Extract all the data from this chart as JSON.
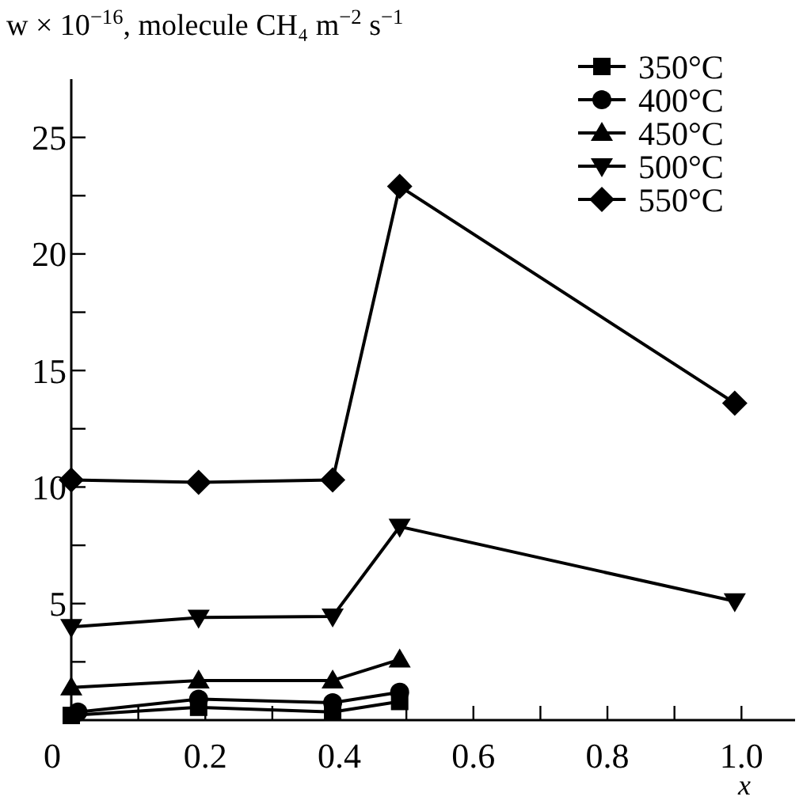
{
  "chart_data": {
    "type": "line",
    "ylabel": "w × 10$^{−16}$, molecule CH₄ m$^{−2}$ s$^{−1}$",
    "xlabel": "x",
    "xlim": [
      0,
      1.08
    ],
    "ylim": [
      0,
      27.5
    ],
    "xticks": [
      0,
      {
        "value": 0.1,
        "label": null
      },
      0.2,
      {
        "value": 0.3,
        "label": null
      },
      0.4,
      {
        "value": 0.5,
        "label": null
      },
      0.6,
      {
        "value": 0.7,
        "label": null
      },
      0.8,
      {
        "value": 0.9,
        "label": null
      },
      {
        "value": 1.0,
        "label": "1.0"
      }
    ],
    "yticks": [
      {
        "value": 2.5,
        "label": null
      },
      5,
      {
        "value": 7.5,
        "label": null
      },
      10,
      {
        "value": 12.5,
        "label": null
      },
      15,
      {
        "value": 17.5,
        "label": null
      },
      20,
      {
        "value": 22.5,
        "label": null
      },
      25
    ],
    "legend": "top right",
    "grid": false,
    "line_style": "solid",
    "series": [
      {
        "name": "350°C",
        "color": "#000000",
        "marker": "square",
        "x": [
          0,
          0.19,
          0.39,
          0.49
        ],
        "values": [
          0.2,
          0.55,
          0.35,
          0.8
        ]
      },
      {
        "name": "400°C",
        "color": "#000000",
        "marker": "circle",
        "x": [
          0.01,
          0.19,
          0.39,
          0.49
        ],
        "values": [
          0.35,
          0.9,
          0.75,
          1.2
        ]
      },
      {
        "name": "450°C",
        "color": "#000000",
        "marker": "triangle",
        "x": [
          0,
          0.19,
          0.39,
          0.49
        ],
        "values": [
          1.4,
          1.7,
          1.7,
          2.6
        ]
      },
      {
        "name": "500°C",
        "color": "#000000",
        "marker": "triangle-down",
        "x": [
          0,
          0.19,
          0.39,
          0.49,
          0.99
        ],
        "values": [
          4.0,
          4.4,
          4.45,
          8.3,
          5.1
        ]
      },
      {
        "name": "550°C",
        "color": "#000000",
        "marker": "diamond",
        "x": [
          0,
          0.19,
          0.39,
          0.49,
          0.99
        ],
        "values": [
          10.3,
          10.2,
          10.3,
          22.9,
          13.6
        ]
      }
    ]
  }
}
